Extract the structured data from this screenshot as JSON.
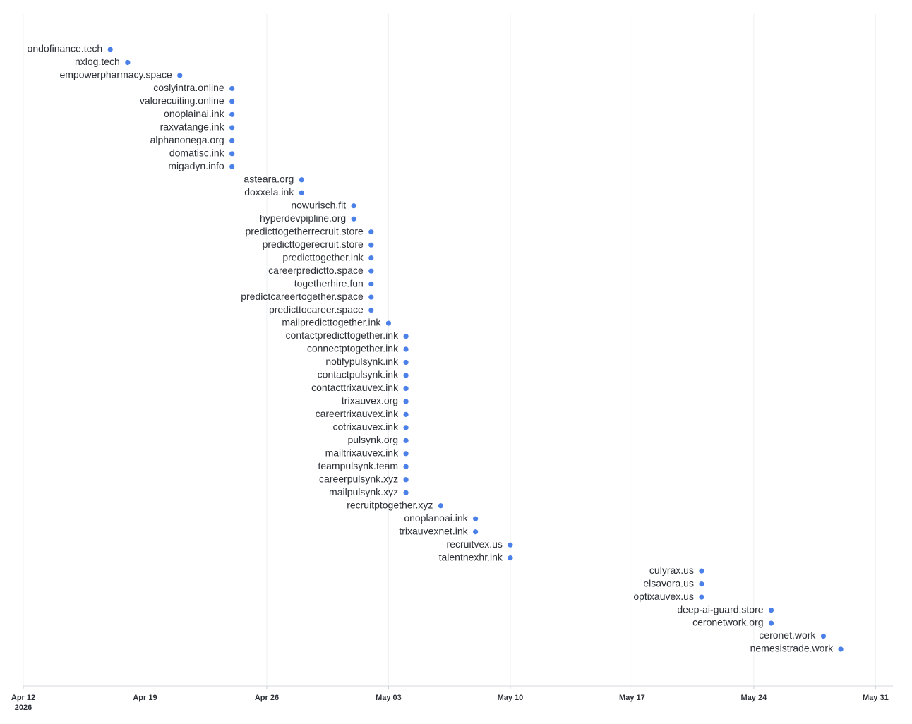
{
  "chart_data": {
    "type": "timeline",
    "color": "#4a80e8",
    "grid": true,
    "categories": [
      "ondofinance.tech",
      "nxlog.tech",
      "empowerpharmacy.space",
      "coslyintra.online",
      "valorecuiting.online",
      "onoplainai.ink",
      "raxvatange.ink",
      "alphanonega.org",
      "domatisc.ink",
      "migadyn.info",
      "asteara.org",
      "doxxela.ink",
      "nowurisch.fit",
      "hyperdevpipline.org",
      "predicttogetherrecruit.store",
      "predicttogerecruit.store",
      "predicttogether.ink",
      "careerpredictto.space",
      "togetherhire.fun",
      "predictcareertogether.space",
      "predicttocareer.space",
      "mailpredicttogether.ink",
      "contactpredicttogether.ink",
      "connectptogether.ink",
      "notifypulsynk.ink",
      "contactpulsynk.ink",
      "contacttrixauvex.ink",
      "trixauvex.org",
      "careertrixauvex.ink",
      "cotrixauvex.ink",
      "pulsynk.org",
      "mailtrixauvex.ink",
      "teampulsynk.team",
      "careerpulsynk.xyz",
      "mailpulsynk.xyz",
      "recruitptogether.xyz",
      "onoplanoai.ink",
      "trixauvexnet.ink",
      "recruitvex.us",
      "talentnexhr.ink",
      "culyrax.us",
      "elsavora.us",
      "optixauvex.us",
      "deep-ai-guard.store",
      "ceronetwork.org",
      "ceronet.work",
      "nemesistrade.work"
    ],
    "x": [
      "2026-04-17",
      "2026-04-18",
      "2026-04-21",
      "2026-04-24",
      "2026-04-24",
      "2026-04-24",
      "2026-04-24",
      "2026-04-24",
      "2026-04-24",
      "2026-04-24",
      "2026-04-28",
      "2026-04-28",
      "2026-05-01",
      "2026-05-01",
      "2026-05-02",
      "2026-05-02",
      "2026-05-02",
      "2026-05-02",
      "2026-05-02",
      "2026-05-02",
      "2026-05-02",
      "2026-05-03",
      "2026-05-04",
      "2026-05-04",
      "2026-05-04",
      "2026-05-04",
      "2026-05-04",
      "2026-05-04",
      "2026-05-04",
      "2026-05-04",
      "2026-05-04",
      "2026-05-04",
      "2026-05-04",
      "2026-05-04",
      "2026-05-04",
      "2026-05-06",
      "2026-05-08",
      "2026-05-08",
      "2026-05-10",
      "2026-05-10",
      "2026-05-21",
      "2026-05-21",
      "2026-05-21",
      "2026-05-25",
      "2026-05-25",
      "2026-05-28",
      "2026-05-29"
    ],
    "xlim": [
      "2026-04-12",
      "2026-06-01"
    ],
    "xticks": [
      {
        "value": "2026-04-12",
        "label": "Apr 12\n2026"
      },
      {
        "value": "2026-04-19",
        "label": "Apr 19"
      },
      {
        "value": "2026-04-26",
        "label": "Apr 26"
      },
      {
        "value": "2026-05-03",
        "label": "May 03"
      },
      {
        "value": "2026-05-10",
        "label": "May 10"
      },
      {
        "value": "2026-05-17",
        "label": "May 17"
      },
      {
        "value": "2026-05-24",
        "label": "May 24"
      },
      {
        "value": "2026-05-31",
        "label": "May 31"
      }
    ]
  }
}
